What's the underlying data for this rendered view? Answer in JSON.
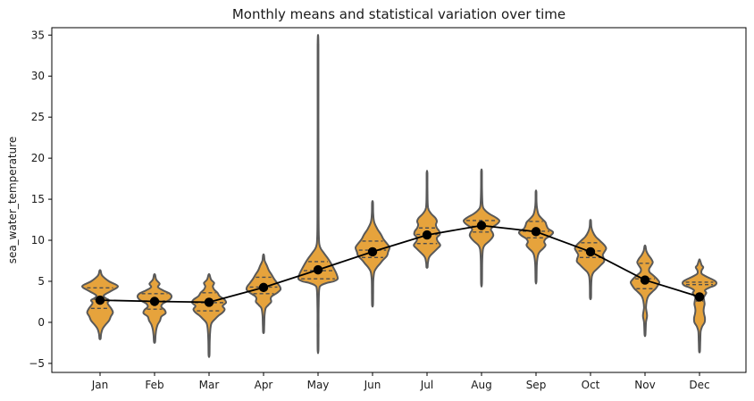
{
  "title": "Monthly means and statistical variation over time",
  "ylabel": "sea_water_temperature",
  "chart_data": {
    "type": "violin",
    "overlay": "line+markers of monthly means",
    "title": "Monthly means and statistical variation over time",
    "xlabel": "",
    "ylabel": "sea_water_temperature",
    "ylim": [
      -6.1,
      35.9
    ],
    "grid": false,
    "y_tick_values": [
      -5,
      0,
      5,
      10,
      15,
      20,
      25,
      30,
      35
    ],
    "y_tick_labels": [
      "−5",
      "0",
      "5",
      "10",
      "15",
      "20",
      "25",
      "30",
      "35"
    ],
    "categories": [
      "Jan",
      "Feb",
      "Mar",
      "Apr",
      "May",
      "Jun",
      "Jul",
      "Aug",
      "Sep",
      "Oct",
      "Nov",
      "Dec"
    ],
    "mean_series": {
      "name": "monthly mean",
      "values": [
        2.7,
        2.55,
        2.45,
        4.25,
        6.4,
        8.6,
        10.65,
        11.8,
        11.05,
        8.6,
        5.15,
        3.1
      ]
    },
    "colors": {
      "violin_fill": "#E6A33C",
      "violin_edge": "#595959",
      "quartile_line": "#4d4d4d",
      "mean_line": "#000000",
      "mean_dot": "#000000",
      "axis": "#000000",
      "text": "#1a1a1a"
    },
    "months": [
      {
        "label": "Jan",
        "mean": 2.7,
        "quartiles": [
          1.7,
          2.8,
          4.2
        ],
        "extent": [
          -2.0,
          6.3
        ],
        "maxw": 20,
        "profile": [
          [
            6.3,
            0.03
          ],
          [
            5.7,
            0.12
          ],
          [
            5.0,
            0.5
          ],
          [
            4.4,
            1.0
          ],
          [
            3.8,
            0.6
          ],
          [
            3.3,
            0.22
          ],
          [
            3.0,
            0.28
          ],
          [
            2.7,
            0.5
          ],
          [
            2.4,
            0.42
          ],
          [
            2.1,
            0.48
          ],
          [
            1.7,
            0.62
          ],
          [
            1.2,
            0.72
          ],
          [
            0.7,
            0.6
          ],
          [
            0.2,
            0.5
          ],
          [
            -0.3,
            0.3
          ],
          [
            -0.8,
            0.14
          ],
          [
            -1.4,
            0.06
          ],
          [
            -2.0,
            0.03
          ]
        ]
      },
      {
        "label": "Feb",
        "mean": 2.55,
        "quartiles": [
          1.6,
          2.6,
          3.5
        ],
        "extent": [
          -2.4,
          5.8
        ],
        "maxw": 19,
        "profile": [
          [
            5.8,
            0.03
          ],
          [
            5.2,
            0.1
          ],
          [
            4.7,
            0.3
          ],
          [
            4.3,
            0.2
          ],
          [
            3.9,
            0.5
          ],
          [
            3.5,
            0.9
          ],
          [
            3.1,
            1.0
          ],
          [
            2.7,
            0.85
          ],
          [
            2.3,
            0.5
          ],
          [
            1.9,
            0.4
          ],
          [
            1.5,
            0.6
          ],
          [
            1.1,
            0.65
          ],
          [
            0.7,
            0.4
          ],
          [
            0.2,
            0.32
          ],
          [
            -0.3,
            0.18
          ],
          [
            -0.9,
            0.1
          ],
          [
            -1.6,
            0.06
          ],
          [
            -2.4,
            0.03
          ]
        ]
      },
      {
        "label": "Mar",
        "mean": 2.45,
        "quartiles": [
          1.4,
          2.4,
          3.6
        ],
        "extent": [
          -4.0,
          5.8
        ],
        "maxw": 19,
        "profile": [
          [
            5.8,
            0.03
          ],
          [
            5.2,
            0.12
          ],
          [
            4.8,
            0.3
          ],
          [
            4.4,
            0.22
          ],
          [
            4.0,
            0.3
          ],
          [
            3.6,
            0.5
          ],
          [
            3.2,
            0.62
          ],
          [
            2.8,
            0.9
          ],
          [
            2.4,
            1.0
          ],
          [
            2.0,
            0.8
          ],
          [
            1.6,
            0.92
          ],
          [
            1.2,
            0.8
          ],
          [
            0.8,
            0.55
          ],
          [
            0.4,
            0.35
          ],
          [
            -0.1,
            0.15
          ],
          [
            -0.8,
            0.08
          ],
          [
            -2.2,
            0.04
          ],
          [
            -4.0,
            0.025
          ]
        ]
      },
      {
        "label": "Apr",
        "mean": 4.25,
        "quartiles": [
          3.5,
          4.3,
          5.5
        ],
        "extent": [
          -1.2,
          8.2
        ],
        "maxw": 19,
        "profile": [
          [
            8.2,
            0.025
          ],
          [
            7.5,
            0.07
          ],
          [
            6.9,
            0.2
          ],
          [
            6.3,
            0.32
          ],
          [
            5.8,
            0.48
          ],
          [
            5.3,
            0.62
          ],
          [
            4.8,
            0.8
          ],
          [
            4.4,
            0.95
          ],
          [
            4.0,
            1.0
          ],
          [
            3.6,
            0.8
          ],
          [
            3.2,
            0.5
          ],
          [
            2.9,
            0.42
          ],
          [
            2.5,
            0.45
          ],
          [
            2.1,
            0.28
          ],
          [
            1.7,
            0.12
          ],
          [
            0.8,
            0.06
          ],
          [
            -0.3,
            0.04
          ],
          [
            -1.2,
            0.025
          ]
        ]
      },
      {
        "label": "May",
        "mean": 6.4,
        "quartiles": [
          5.3,
          6.3,
          7.4
        ],
        "extent": [
          -3.4,
          33.9
        ],
        "maxw": 22,
        "profile": [
          [
            33.9,
            0.02
          ],
          [
            25.0,
            0.02
          ],
          [
            15.0,
            0.025
          ],
          [
            10.5,
            0.04
          ],
          [
            9.2,
            0.1
          ],
          [
            8.5,
            0.28
          ],
          [
            7.8,
            0.5
          ],
          [
            7.1,
            0.68
          ],
          [
            6.5,
            0.82
          ],
          [
            5.9,
            0.94
          ],
          [
            5.3,
            1.0
          ],
          [
            5.0,
            0.8
          ],
          [
            4.8,
            0.45
          ],
          [
            4.5,
            0.15
          ],
          [
            4.0,
            0.06
          ],
          [
            2.0,
            0.03
          ],
          [
            -0.5,
            0.025
          ],
          [
            -3.4,
            0.02
          ]
        ]
      },
      {
        "label": "Jun",
        "mean": 8.6,
        "quartiles": [
          7.9,
          8.8,
          9.9
        ],
        "extent": [
          2.1,
          14.6
        ],
        "maxw": 19,
        "profile": [
          [
            14.6,
            0.025
          ],
          [
            13.2,
            0.04
          ],
          [
            12.2,
            0.1
          ],
          [
            11.4,
            0.28
          ],
          [
            10.7,
            0.5
          ],
          [
            10.1,
            0.65
          ],
          [
            9.6,
            0.85
          ],
          [
            9.1,
            1.0
          ],
          [
            8.6,
            0.92
          ],
          [
            8.1,
            0.85
          ],
          [
            7.6,
            0.62
          ],
          [
            7.1,
            0.42
          ],
          [
            6.6,
            0.22
          ],
          [
            6.1,
            0.1
          ],
          [
            5.2,
            0.05
          ],
          [
            3.6,
            0.035
          ],
          [
            2.1,
            0.025
          ]
        ]
      },
      {
        "label": "Jul",
        "mean": 10.65,
        "quartiles": [
          9.6,
          10.7,
          11.5
        ],
        "extent": [
          6.7,
          18.2
        ],
        "maxw": 19,
        "profile": [
          [
            18.2,
            0.02
          ],
          [
            16.0,
            0.025
          ],
          [
            14.0,
            0.06
          ],
          [
            13.3,
            0.22
          ],
          [
            12.7,
            0.5
          ],
          [
            12.3,
            0.58
          ],
          [
            11.9,
            0.52
          ],
          [
            11.5,
            0.58
          ],
          [
            11.1,
            0.72
          ],
          [
            10.7,
            0.75
          ],
          [
            10.3,
            0.58
          ],
          [
            9.9,
            0.62
          ],
          [
            9.4,
            0.78
          ],
          [
            9.0,
            0.62
          ],
          [
            8.6,
            0.42
          ],
          [
            8.2,
            0.22
          ],
          [
            7.8,
            0.1
          ],
          [
            7.2,
            0.05
          ],
          [
            6.7,
            0.03
          ]
        ]
      },
      {
        "label": "Aug",
        "mean": 11.8,
        "quartiles": [
          11.0,
          11.7,
          12.4
        ],
        "extent": [
          4.7,
          18.4
        ],
        "maxw": 20,
        "profile": [
          [
            18.4,
            0.02
          ],
          [
            16.5,
            0.025
          ],
          [
            14.3,
            0.06
          ],
          [
            13.7,
            0.18
          ],
          [
            13.2,
            0.45
          ],
          [
            12.8,
            0.78
          ],
          [
            12.4,
            1.0
          ],
          [
            12.0,
            0.88
          ],
          [
            11.6,
            0.62
          ],
          [
            11.3,
            0.52
          ],
          [
            11.0,
            0.6
          ],
          [
            10.6,
            0.66
          ],
          [
            10.2,
            0.56
          ],
          [
            9.8,
            0.38
          ],
          [
            9.4,
            0.18
          ],
          [
            8.9,
            0.08
          ],
          [
            7.5,
            0.04
          ],
          [
            4.7,
            0.025
          ]
        ]
      },
      {
        "label": "Sep",
        "mean": 11.05,
        "quartiles": [
          10.3,
          11.1,
          12.3
        ],
        "extent": [
          5.0,
          15.9
        ],
        "maxw": 19,
        "profile": [
          [
            15.9,
            0.02
          ],
          [
            14.6,
            0.03
          ],
          [
            13.8,
            0.07
          ],
          [
            13.1,
            0.16
          ],
          [
            12.6,
            0.36
          ],
          [
            12.2,
            0.55
          ],
          [
            11.8,
            0.62
          ],
          [
            11.4,
            0.72
          ],
          [
            11.0,
            1.0
          ],
          [
            10.6,
            0.88
          ],
          [
            10.2,
            0.58
          ],
          [
            9.8,
            0.48
          ],
          [
            9.4,
            0.56
          ],
          [
            9.0,
            0.42
          ],
          [
            8.6,
            0.22
          ],
          [
            8.2,
            0.12
          ],
          [
            7.2,
            0.05
          ],
          [
            5.0,
            0.025
          ]
        ]
      },
      {
        "label": "Oct",
        "mean": 8.6,
        "quartiles": [
          7.9,
          8.7,
          9.7
        ],
        "extent": [
          3.0,
          12.4
        ],
        "maxw": 19,
        "profile": [
          [
            12.4,
            0.025
          ],
          [
            11.6,
            0.05
          ],
          [
            11.0,
            0.14
          ],
          [
            10.4,
            0.32
          ],
          [
            9.9,
            0.58
          ],
          [
            9.4,
            0.82
          ],
          [
            9.0,
            0.92
          ],
          [
            8.6,
            0.82
          ],
          [
            8.2,
            0.72
          ],
          [
            7.8,
            0.78
          ],
          [
            7.4,
            0.8
          ],
          [
            7.0,
            0.62
          ],
          [
            6.5,
            0.38
          ],
          [
            6.1,
            0.18
          ],
          [
            5.6,
            0.08
          ],
          [
            4.5,
            0.04
          ],
          [
            3.0,
            0.03
          ]
        ]
      },
      {
        "label": "Nov",
        "mean": 5.15,
        "quartiles": [
          4.1,
          5.3,
          7.2
        ],
        "extent": [
          -1.5,
          9.3
        ],
        "maxw": 19,
        "profile": [
          [
            9.3,
            0.025
          ],
          [
            8.7,
            0.08
          ],
          [
            8.2,
            0.2
          ],
          [
            7.7,
            0.38
          ],
          [
            7.3,
            0.46
          ],
          [
            6.9,
            0.36
          ],
          [
            6.5,
            0.24
          ],
          [
            6.1,
            0.28
          ],
          [
            5.7,
            0.5
          ],
          [
            5.3,
            0.7
          ],
          [
            4.9,
            0.84
          ],
          [
            4.5,
            0.76
          ],
          [
            4.1,
            0.62
          ],
          [
            3.7,
            0.42
          ],
          [
            3.2,
            0.2
          ],
          [
            2.6,
            0.1
          ],
          [
            1.8,
            0.06
          ],
          [
            0.8,
            0.12
          ],
          [
            0.0,
            0.06
          ],
          [
            -1.5,
            0.025
          ]
        ]
      },
      {
        "label": "Dec",
        "mean": 3.1,
        "quartiles": [
          2.6,
          4.6,
          4.9
        ],
        "extent": [
          -3.5,
          7.6
        ],
        "maxw": 19,
        "profile": [
          [
            7.6,
            0.025
          ],
          [
            7.0,
            0.12
          ],
          [
            6.7,
            0.22
          ],
          [
            6.3,
            0.12
          ],
          [
            5.9,
            0.14
          ],
          [
            5.5,
            0.48
          ],
          [
            5.1,
            0.88
          ],
          [
            4.8,
            1.0
          ],
          [
            4.5,
            0.9
          ],
          [
            4.2,
            0.55
          ],
          [
            3.9,
            0.32
          ],
          [
            3.6,
            0.4
          ],
          [
            3.3,
            0.32
          ],
          [
            3.0,
            0.25
          ],
          [
            2.6,
            0.28
          ],
          [
            2.2,
            0.3
          ],
          [
            1.8,
            0.26
          ],
          [
            1.4,
            0.24
          ],
          [
            1.0,
            0.27
          ],
          [
            0.5,
            0.32
          ],
          [
            0.0,
            0.3
          ],
          [
            -0.5,
            0.16
          ],
          [
            -1.1,
            0.07
          ],
          [
            -2.2,
            0.045
          ],
          [
            -3.5,
            0.025
          ]
        ]
      }
    ]
  }
}
